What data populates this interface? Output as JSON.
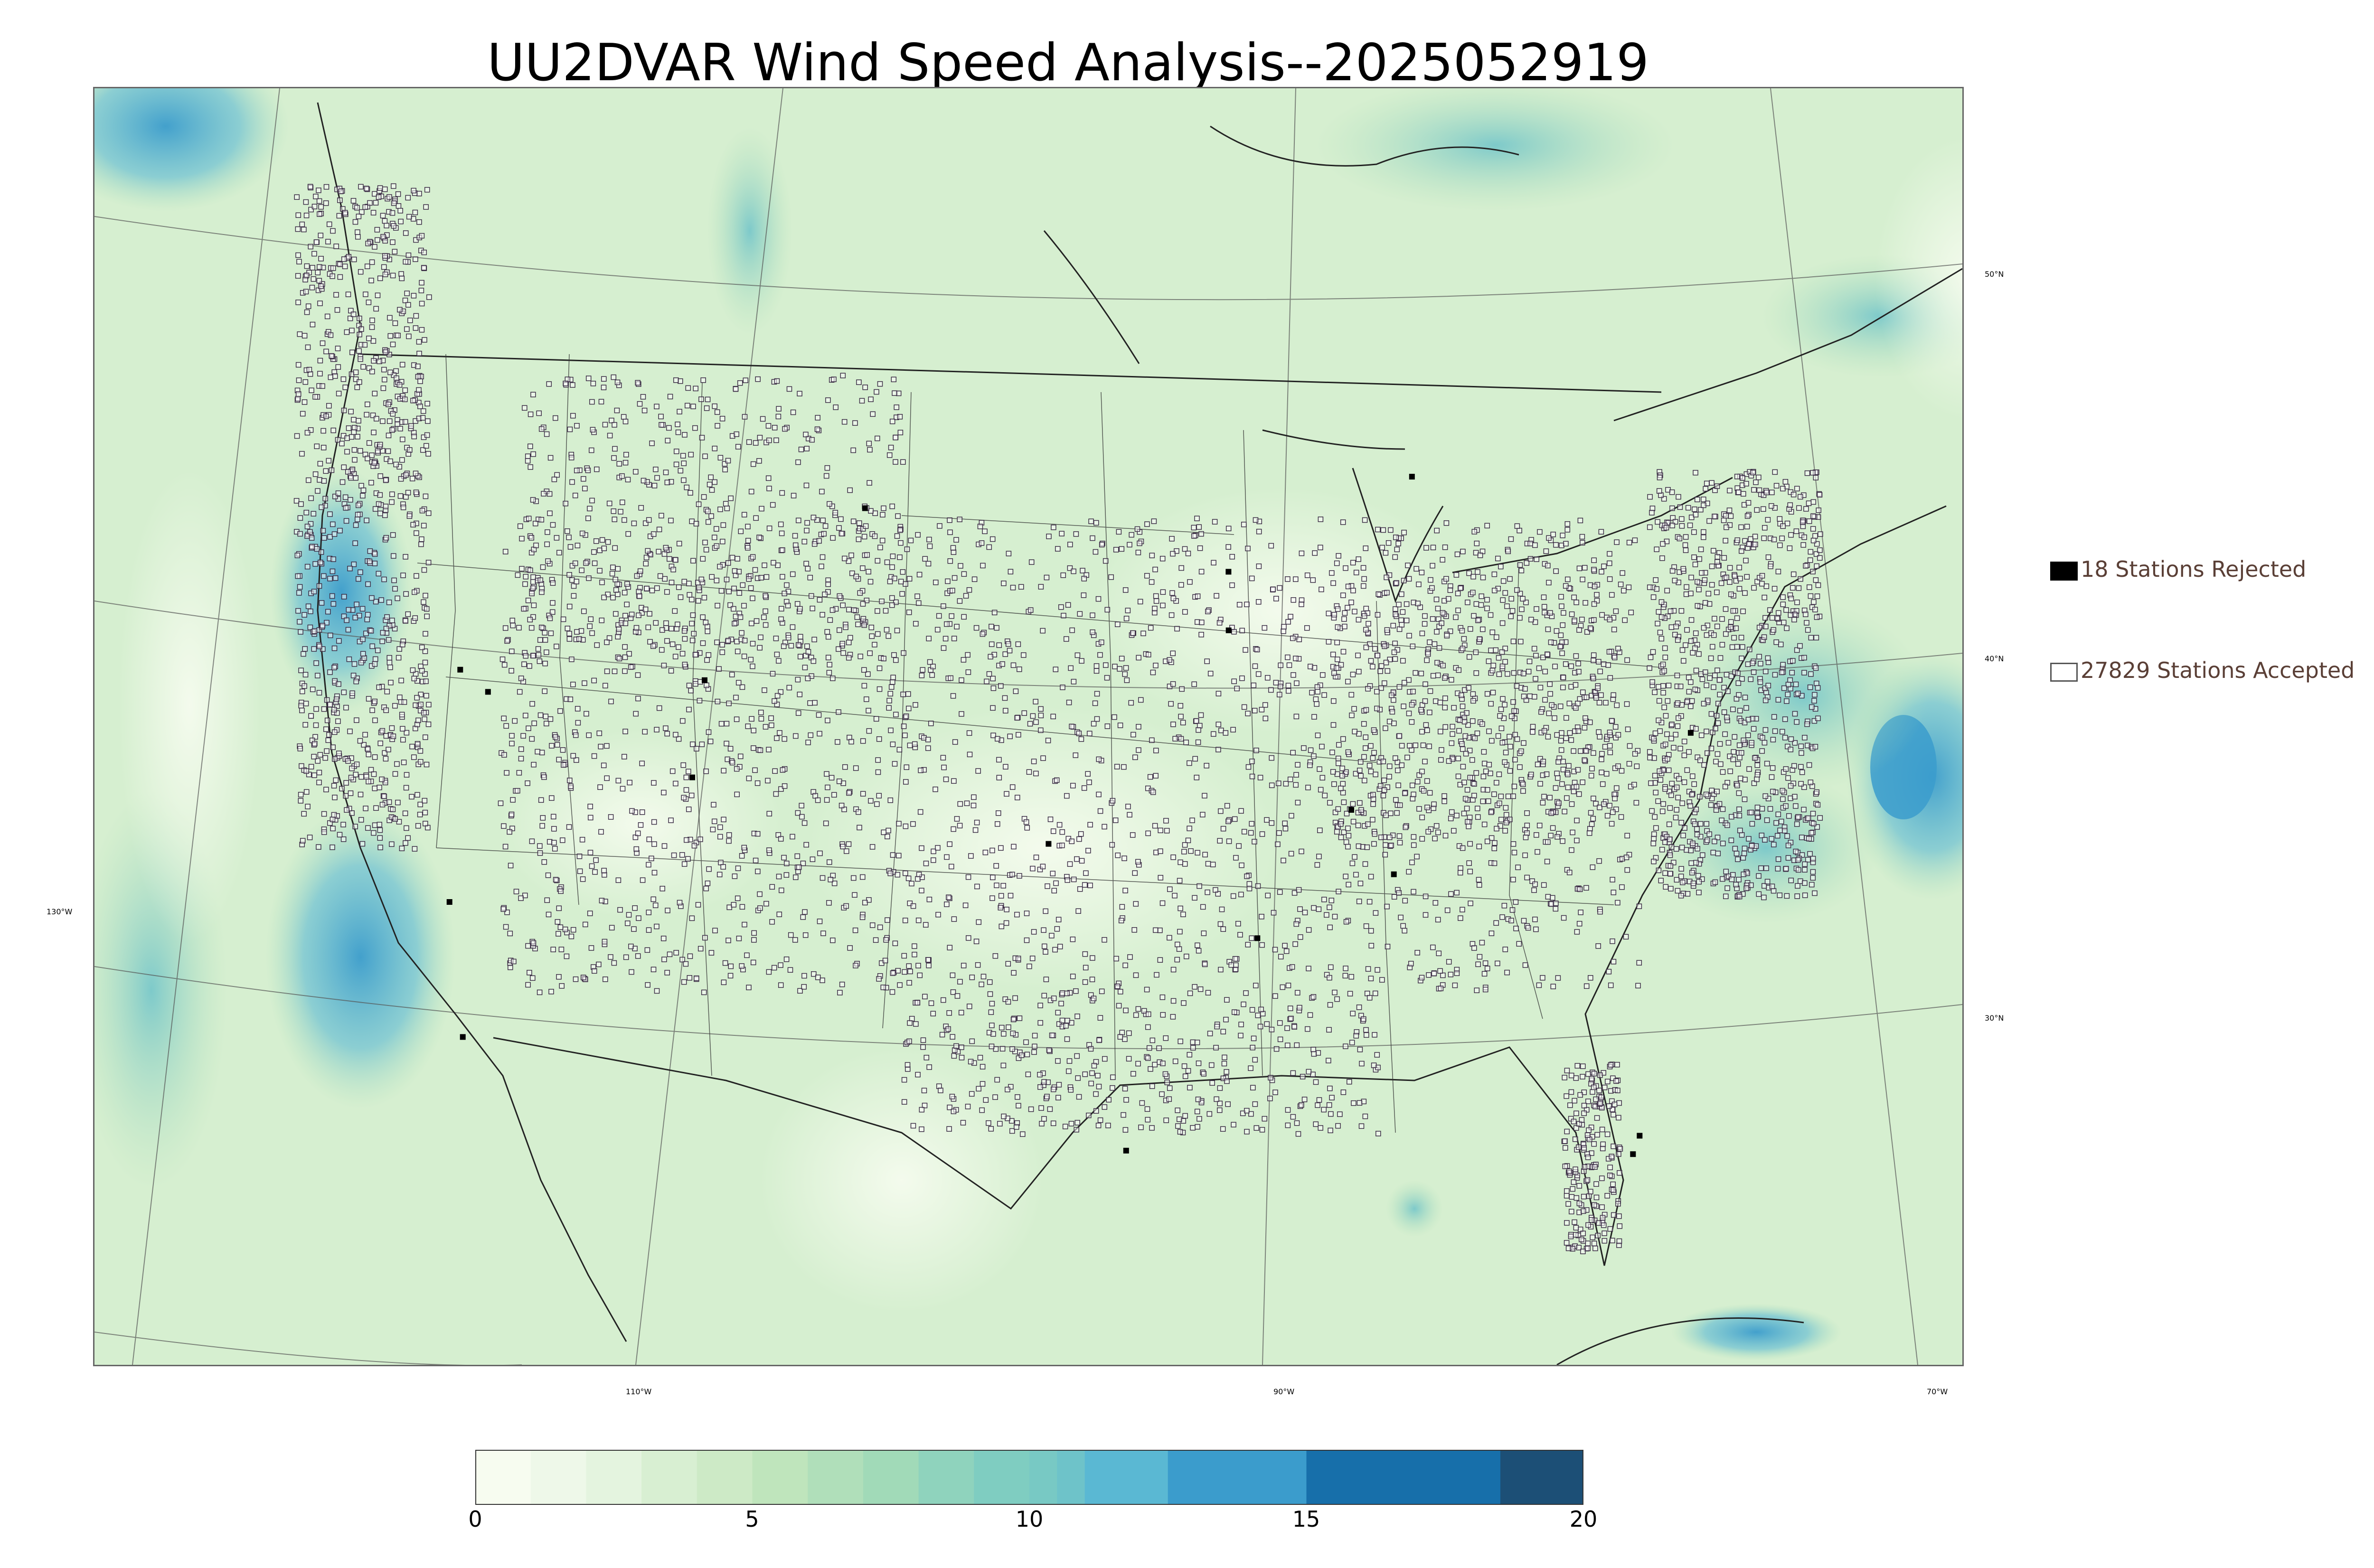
{
  "title": "UU2DVAR Wind Speed Analysis--2025052919",
  "axes": {
    "lat_labels": [
      "50°N",
      "40°N",
      "30°N"
    ],
    "lon_label_left": "130°W",
    "lon_labels_bottom": [
      "110°W",
      "90°W",
      "70°W"
    ]
  },
  "legend": {
    "rejected": "18 Stations Rejected",
    "accepted": "27829 Stations Accepted"
  },
  "colorbar": {
    "min": 0,
    "max": 20,
    "tick_labels": [
      "0",
      "5",
      "10",
      "15",
      "20"
    ],
    "levels": [
      {
        "from": 0,
        "to": 1,
        "color": "#f7fcf0"
      },
      {
        "from": 1,
        "to": 2,
        "color": "#eef8e9"
      },
      {
        "from": 2,
        "to": 3,
        "color": "#e4f4df"
      },
      {
        "from": 3,
        "to": 4,
        "color": "#d8efd2"
      },
      {
        "from": 4,
        "to": 5,
        "color": "#cdeac6"
      },
      {
        "from": 5,
        "to": 6,
        "color": "#bfe5bc"
      },
      {
        "from": 6,
        "to": 7,
        "color": "#b0dfba"
      },
      {
        "from": 7,
        "to": 8,
        "color": "#a1dab8"
      },
      {
        "from": 8,
        "to": 9,
        "color": "#8fd3bd"
      },
      {
        "from": 9,
        "to": 10,
        "color": "#7fcdc1"
      },
      {
        "from": 10,
        "to": 10.5,
        "color": "#78c9c4"
      },
      {
        "from": 10.5,
        "to": 11,
        "color": "#6ec3c9"
      },
      {
        "from": 11,
        "to": 12.5,
        "color": "#5ab8d3"
      },
      {
        "from": 12.5,
        "to": 15,
        "color": "#3b9ccc"
      },
      {
        "from": 15,
        "to": 18.5,
        "color": "#176faa"
      },
      {
        "from": 18.5,
        "to": 20,
        "color": "#1c4f76"
      }
    ]
  },
  "colors": {
    "map_background": "#dff2da",
    "ocean_light": "#c8ead1",
    "windy_blue": "#5ab8d3",
    "strong_blue": "#3b9ccc",
    "station_outline": "#3a2c44",
    "border_lines": "#333333"
  }
}
